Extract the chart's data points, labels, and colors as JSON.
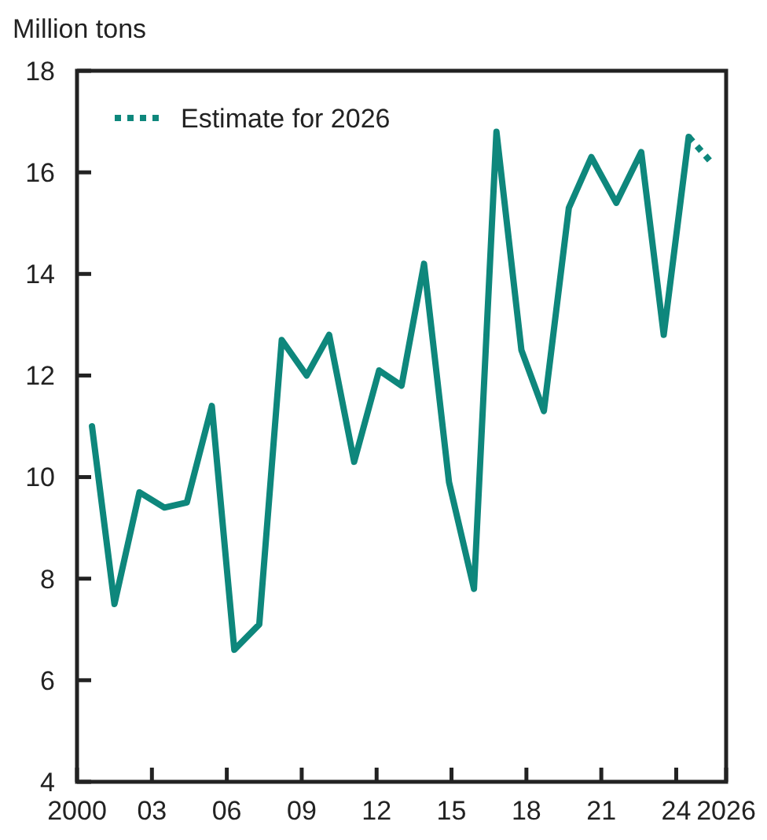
{
  "chart_data": {
    "type": "line",
    "ylabel": "Million tons",
    "xlim": [
      2000,
      2026
    ],
    "ylim": [
      4,
      18
    ],
    "yticks": [
      4,
      6,
      8,
      10,
      12,
      14,
      16,
      18
    ],
    "xticks": [
      2000,
      {
        "value": 2003,
        "label": "03"
      },
      {
        "value": 2006,
        "label": "06"
      },
      {
        "value": 2009,
        "label": "09"
      },
      {
        "value": 2012,
        "label": "12"
      },
      {
        "value": 2015,
        "label": "15"
      },
      {
        "value": 2018,
        "label": "18"
      },
      {
        "value": 2021,
        "label": "21"
      },
      {
        "value": 2024,
        "label": "24"
      },
      2026
    ],
    "legend": "top left",
    "grid": false,
    "series": [
      {
        "color": "#0e877c",
        "line_style": "solid",
        "x": [
          2000.6,
          2001.5,
          2002.5,
          2003.5,
          2004.4,
          2005.4,
          2006.3,
          2007.3,
          2008.2,
          2009.2,
          2010.1,
          2011.1,
          2012.1,
          2013.0,
          2013.9,
          2014.9,
          2015.9,
          2016.8,
          2017.8,
          2018.7,
          2019.7,
          2020.6,
          2021.6,
          2022.6,
          2023.5,
          2024.5
        ],
        "values": [
          11.0,
          7.5,
          9.7,
          9.4,
          9.5,
          11.4,
          6.6,
          7.1,
          12.7,
          12.0,
          12.8,
          10.3,
          12.1,
          11.8,
          14.2,
          9.9,
          7.8,
          16.8,
          12.5,
          11.3,
          15.3,
          16.3,
          15.4,
          16.4,
          12.8,
          16.7
        ]
      },
      {
        "name": "Estimate for 2026",
        "color": "#0e877c",
        "line_style": "dotted",
        "x": [
          2024.5,
          2025.4
        ],
        "values": [
          16.7,
          16.2
        ]
      }
    ]
  }
}
